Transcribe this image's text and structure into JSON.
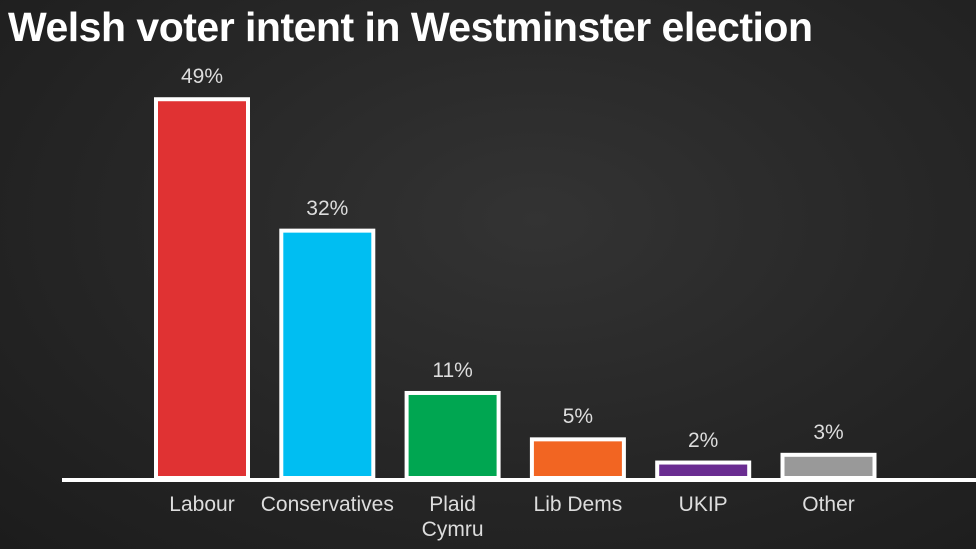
{
  "chart_data": {
    "type": "bar",
    "title": "Welsh voter intent in Westminster election",
    "categories": [
      "Labour",
      "Conservatives",
      "Plaid Cymru",
      "Lib Dems",
      "UKIP",
      "Other"
    ],
    "values": [
      49,
      32,
      11,
      5,
      2,
      3
    ],
    "value_labels": [
      "49%",
      "32%",
      "11%",
      "5%",
      "2%",
      "3%"
    ],
    "colors": [
      "#e03233",
      "#00bef2",
      "#00a651",
      "#f26522",
      "#6a2c91",
      "#999999"
    ]
  }
}
